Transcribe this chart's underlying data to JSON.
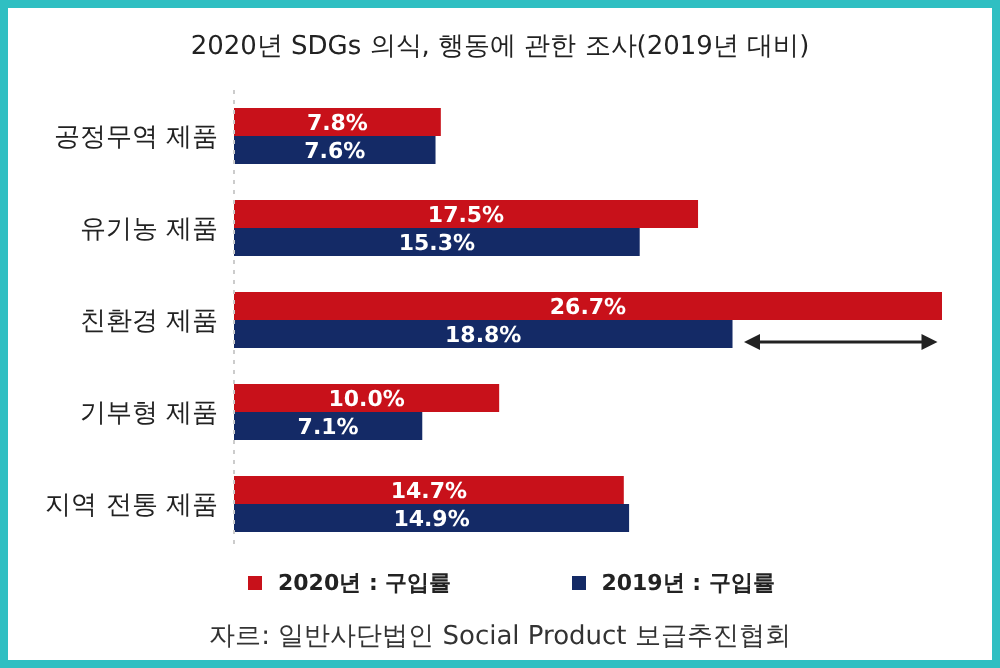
{
  "chart_data": {
    "type": "bar",
    "orientation": "horizontal",
    "title": "2020년 SDGs 의식, 행동에 관한 조사(2019년 대비)",
    "categories": [
      "공정무역 제품",
      "유기농 제품",
      "친환경 제품",
      "기부형 제품",
      "지역 전통 제품"
    ],
    "series": [
      {
        "name": "2020년 : 구입률",
        "color": "#c8111a",
        "values": [
          7.8,
          17.5,
          26.7,
          10.0,
          14.7
        ],
        "value_labels": [
          "7.8%",
          "17.5%",
          "26.7%",
          "10.0%",
          "14.7%"
        ]
      },
      {
        "name": "2019년 : 구입률",
        "color": "#142a66",
        "values": [
          7.6,
          15.3,
          18.8,
          7.1,
          14.9
        ],
        "value_labels": [
          "7.6%",
          "15.3%",
          "18.8%",
          "7.1%",
          "14.9%"
        ]
      }
    ],
    "legend": "bottom",
    "annotations": [
      "자르: 일반사단법인 Social Product 보급추진협회"
    ]
  }
}
